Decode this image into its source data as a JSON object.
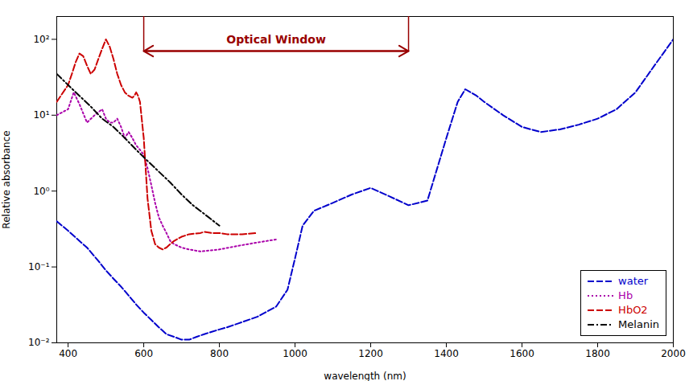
{
  "chart_data": {
    "type": "line",
    "xlabel": "wavelength (nm)",
    "ylabel": "Relative absorbance",
    "log": "y",
    "grid": false,
    "legend": "lower right",
    "xlim": [
      370,
      2000
    ],
    "xticks": [
      400,
      600,
      800,
      1000,
      1200,
      1400,
      1600,
      1800,
      2000
    ],
    "ylim": [
      0.01,
      200
    ],
    "yticks": [
      {
        "value": 0.01,
        "label": "10⁻²"
      },
      {
        "value": 0.1,
        "label": "10⁻¹"
      },
      {
        "value": 1,
        "label": "10⁰"
      },
      {
        "value": 10,
        "label": "10¹"
      },
      {
        "value": 100,
        "label": "10²"
      }
    ],
    "annotations": [
      {
        "text": "Optical Window",
        "x": [
          600,
          1300
        ],
        "y": 70,
        "color": "#990000"
      }
    ],
    "series": [
      {
        "name": "water",
        "color": "#0000cc",
        "line_style": "dashed",
        "x": [
          370,
          400,
          430,
          450,
          480,
          500,
          520,
          540,
          560,
          580,
          600,
          620,
          640,
          660,
          680,
          700,
          720,
          740,
          760,
          780,
          800,
          820,
          850,
          900,
          950,
          980,
          1000,
          1020,
          1050,
          1100,
          1150,
          1200,
          1250,
          1300,
          1350,
          1400,
          1430,
          1450,
          1480,
          1500,
          1550,
          1600,
          1650,
          1700,
          1750,
          1800,
          1850,
          1900,
          1950,
          2000
        ],
        "values": [
          0.4,
          0.3,
          0.22,
          0.18,
          0.12,
          0.09,
          0.07,
          0.055,
          0.042,
          0.032,
          0.025,
          0.02,
          0.016,
          0.013,
          0.012,
          0.011,
          0.011,
          0.012,
          0.013,
          0.014,
          0.015,
          0.016,
          0.018,
          0.022,
          0.03,
          0.05,
          0.13,
          0.35,
          0.55,
          0.7,
          0.9,
          1.1,
          0.85,
          0.65,
          0.75,
          5.0,
          15,
          22,
          18,
          15,
          10,
          7,
          6,
          6.5,
          7.5,
          9,
          12,
          20,
          45,
          100
        ]
      },
      {
        "name": "Hb",
        "color": "#aa00aa",
        "line_style": "dotted",
        "x": [
          370,
          400,
          415,
          430,
          450,
          470,
          490,
          500,
          510,
          520,
          530,
          540,
          550,
          560,
          570,
          580,
          590,
          600,
          610,
          620,
          630,
          640,
          650,
          660,
          670,
          680,
          700,
          720,
          750,
          800,
          850,
          900,
          950
        ],
        "values": [
          10,
          12,
          20,
          14,
          8,
          10,
          12,
          9,
          8,
          8,
          9,
          7,
          5,
          6,
          5,
          4,
          3.5,
          3,
          2,
          1.2,
          0.7,
          0.45,
          0.35,
          0.28,
          0.22,
          0.2,
          0.18,
          0.17,
          0.16,
          0.17,
          0.19,
          0.21,
          0.23
        ]
      },
      {
        "name": "HbO2",
        "color": "#cc0000",
        "line_style": "dashed",
        "x": [
          370,
          400,
          410,
          420,
          430,
          440,
          450,
          460,
          470,
          480,
          490,
          500,
          510,
          520,
          530,
          540,
          550,
          560,
          570,
          575,
          580,
          585,
          590,
          600,
          610,
          620,
          630,
          640,
          650,
          660,
          670,
          680,
          700,
          720,
          750,
          760,
          780,
          800,
          820,
          860,
          900
        ],
        "values": [
          15,
          25,
          35,
          50,
          65,
          60,
          45,
          35,
          40,
          55,
          75,
          100,
          80,
          55,
          35,
          25,
          20,
          18,
          17,
          18,
          20,
          18,
          15,
          5,
          0.8,
          0.3,
          0.2,
          0.18,
          0.17,
          0.18,
          0.2,
          0.22,
          0.25,
          0.27,
          0.28,
          0.29,
          0.28,
          0.28,
          0.27,
          0.27,
          0.28
        ]
      },
      {
        "name": "Melanin",
        "color": "#000000",
        "line_style": "dashdot",
        "x": [
          370,
          400,
          430,
          460,
          490,
          520,
          550,
          580,
          610,
          640,
          670,
          700,
          730,
          760,
          800
        ],
        "values": [
          35,
          25,
          18,
          13,
          9,
          7,
          5,
          3.5,
          2.5,
          1.8,
          1.3,
          0.9,
          0.65,
          0.5,
          0.35
        ]
      }
    ]
  }
}
